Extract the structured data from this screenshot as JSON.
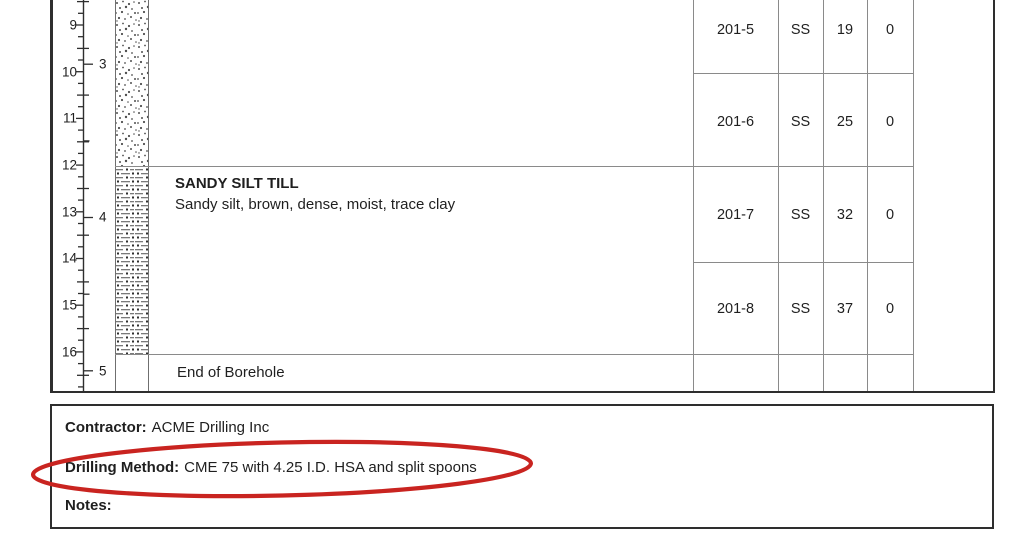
{
  "ruler": {
    "ft_labels": [
      "9",
      "10",
      "11",
      "12",
      "13",
      "14",
      "15",
      "16"
    ],
    "m_labels": [
      "3",
      "4",
      "5"
    ]
  },
  "log": {
    "layer": {
      "title": "SANDY SILT TILL",
      "description": "Sandy silt, brown, dense, moist, trace clay"
    },
    "end_note": "End of Borehole",
    "samples": [
      {
        "number": "201-5",
        "type": "SS",
        "blows": "19",
        "other": "0"
      },
      {
        "number": "201-6",
        "type": "SS",
        "blows": "25",
        "other": "0"
      },
      {
        "number": "201-7",
        "type": "SS",
        "blows": "32",
        "other": "0"
      },
      {
        "number": "201-8",
        "type": "SS",
        "blows": "37",
        "other": "0"
      }
    ]
  },
  "footer": {
    "contractor_label": "Contractor:",
    "contractor_value": "ACME Drilling Inc",
    "method_label": "Drilling Method:",
    "method_value": "CME 75 with 4.25 I.D. HSA and split spoons",
    "notes_label": "Notes:"
  },
  "colors": {
    "annotation_red": "#c92420",
    "grid_gray": "#8a8a8a",
    "border_dark": "#2e2e2e"
  }
}
